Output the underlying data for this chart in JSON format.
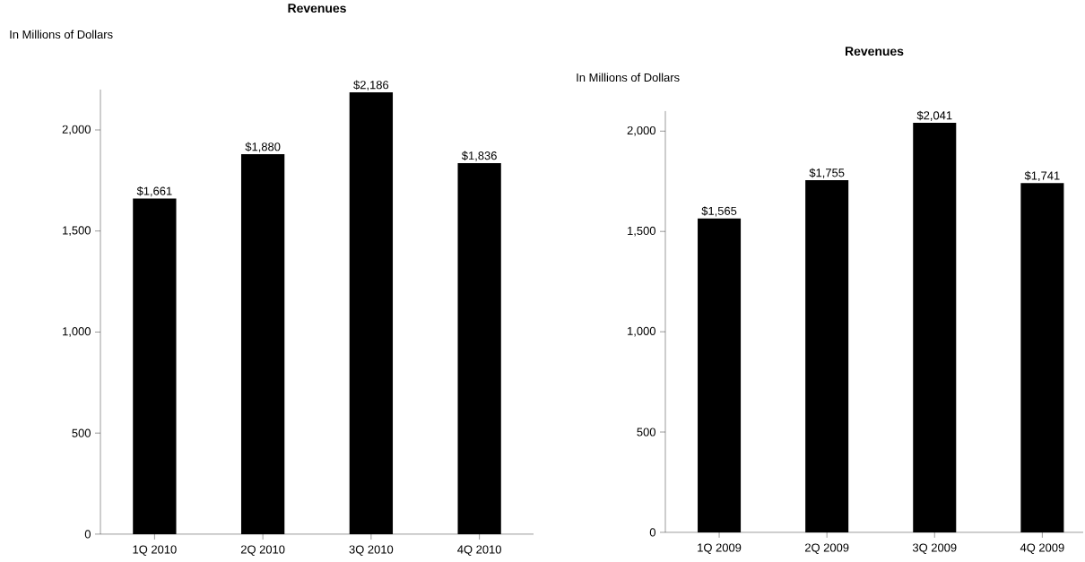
{
  "chart_data": [
    {
      "type": "bar",
      "title": "Revenues",
      "ylabel": "In Millions of Dollars",
      "categories": [
        "1Q 2010",
        "2Q 2010",
        "3Q 2010",
        "4Q 2010"
      ],
      "values": [
        1661,
        1880,
        2186,
        1836
      ],
      "value_labels": [
        "$1,661",
        "$1,880",
        "$2,186",
        "$1,836"
      ],
      "color": "#000000",
      "ylim": [
        0,
        2200
      ],
      "yticks": [
        {
          "value": 0,
          "label": "0"
        },
        {
          "value": 500,
          "label": "500"
        },
        {
          "value": 1000,
          "label": "1,000"
        },
        {
          "value": 1500,
          "label": "1,500"
        },
        {
          "value": 2000,
          "label": "2,000"
        }
      ]
    },
    {
      "type": "bar",
      "title": "Revenues",
      "ylabel": "In Millions of Dollars",
      "categories": [
        "1Q 2009",
        "2Q 2009",
        "3Q 2009",
        "4Q 2009"
      ],
      "values": [
        1565,
        1755,
        2041,
        1741
      ],
      "value_labels": [
        "$1,565",
        "$1,755",
        "$2,041",
        "$1,741"
      ],
      "color": "#000000",
      "ylim": [
        0,
        2100
      ],
      "yticks": [
        {
          "value": 0,
          "label": "0"
        },
        {
          "value": 500,
          "label": "500"
        },
        {
          "value": 1000,
          "label": "1,000"
        },
        {
          "value": 1500,
          "label": "1,500"
        },
        {
          "value": 2000,
          "label": "2,000"
        }
      ]
    }
  ]
}
